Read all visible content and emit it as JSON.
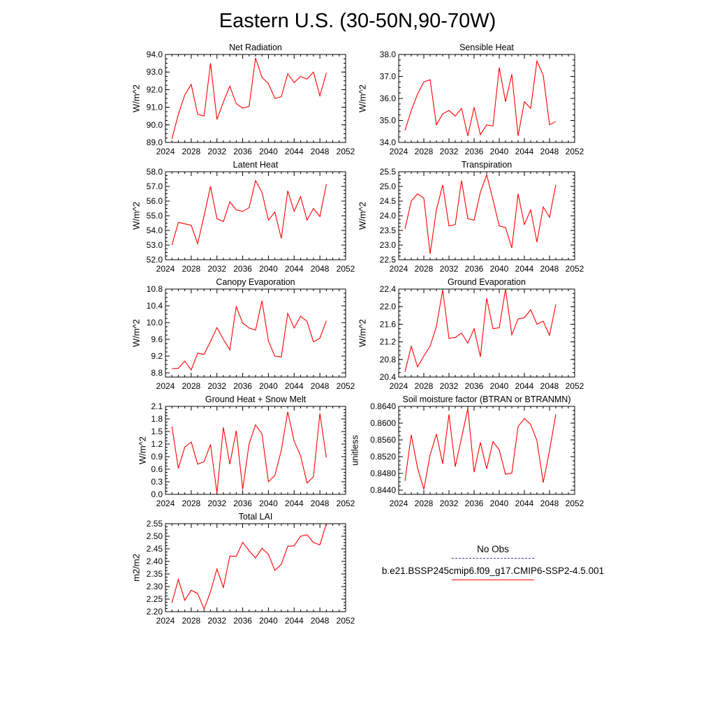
{
  "title": "Eastern U.S. (30-50N,90-70W)",
  "legend": {
    "items": [
      {
        "label": "No Obs",
        "color": "#3b3bb8",
        "style": "dashed"
      },
      {
        "label": "b.e21.BSSP245cmip6.f09_g17.CMIP6-SSP2-4.5.001",
        "color": "#ff0000",
        "style": "solid"
      }
    ]
  },
  "chart_data": [
    {
      "type": "line",
      "title": "Net Radiation",
      "ylabel": "W/m^2",
      "xlim": [
        2024,
        2052
      ],
      "ylim": [
        89.0,
        94.0
      ],
      "xticks": [
        2024,
        2028,
        2032,
        2036,
        2040,
        2044,
        2048,
        2052
      ],
      "yticks": [
        "89.0",
        "90.0",
        "91.0",
        "92.0",
        "93.0",
        "94.0"
      ],
      "series": [
        {
          "color": "#ff0000",
          "x": [
            2025,
            2026,
            2027,
            2028,
            2029,
            2030,
            2031,
            2032,
            2033,
            2034,
            2035,
            2036,
            2037,
            2038,
            2039,
            2040,
            2041,
            2042,
            2043,
            2044,
            2045,
            2046,
            2047,
            2048,
            2049
          ],
          "values": [
            89.2,
            90.6,
            91.7,
            92.3,
            90.6,
            90.5,
            93.5,
            90.3,
            91.3,
            92.2,
            91.2,
            90.95,
            91.05,
            93.8,
            92.7,
            92.35,
            91.5,
            91.6,
            92.9,
            92.4,
            92.75,
            92.6,
            93.0,
            91.65,
            92.95
          ]
        }
      ]
    },
    {
      "type": "line",
      "title": "Sensible Heat",
      "ylabel": "W/m^2",
      "xlim": [
        2024,
        2052
      ],
      "ylim": [
        34.0,
        38.0
      ],
      "xticks": [
        2024,
        2028,
        2032,
        2036,
        2040,
        2044,
        2048,
        2052
      ],
      "yticks": [
        "34.0",
        "35.0",
        "36.0",
        "37.0",
        "38.0"
      ],
      "series": [
        {
          "color": "#ff0000",
          "x": [
            2025,
            2026,
            2027,
            2028,
            2029,
            2030,
            2031,
            2032,
            2033,
            2034,
            2035,
            2036,
            2037,
            2038,
            2039,
            2040,
            2041,
            2042,
            2043,
            2044,
            2045,
            2046,
            2047,
            2048,
            2049
          ],
          "values": [
            34.55,
            35.45,
            36.2,
            36.75,
            36.85,
            34.8,
            35.3,
            35.45,
            35.2,
            35.55,
            34.3,
            35.6,
            34.35,
            34.8,
            34.75,
            37.4,
            35.85,
            37.1,
            34.3,
            35.85,
            35.55,
            37.7,
            37.05,
            34.8,
            34.95
          ]
        }
      ]
    },
    {
      "type": "line",
      "title": "Latent Heat",
      "ylabel": "W/m^2",
      "xlim": [
        2024,
        2052
      ],
      "ylim": [
        52.0,
        58.0
      ],
      "xticks": [
        2024,
        2028,
        2032,
        2036,
        2040,
        2044,
        2048,
        2052
      ],
      "yticks": [
        "52.0",
        "53.0",
        "54.0",
        "55.0",
        "56.0",
        "57.0",
        "58.0"
      ],
      "series": [
        {
          "color": "#ff0000",
          "x": [
            2025,
            2026,
            2027,
            2028,
            2029,
            2030,
            2031,
            2032,
            2033,
            2034,
            2035,
            2036,
            2037,
            2038,
            2039,
            2040,
            2041,
            2042,
            2043,
            2044,
            2045,
            2046,
            2047,
            2048,
            2049
          ],
          "values": [
            53.0,
            54.55,
            54.45,
            54.35,
            53.1,
            55.0,
            57.0,
            54.8,
            54.6,
            55.95,
            55.4,
            55.3,
            55.55,
            57.4,
            56.6,
            54.7,
            55.25,
            53.45,
            56.7,
            55.3,
            56.3,
            54.7,
            55.5,
            54.95,
            57.15
          ]
        }
      ]
    },
    {
      "type": "line",
      "title": "Transpiration",
      "ylabel": "W/m^2",
      "xlim": [
        2024,
        2052
      ],
      "ylim": [
        22.5,
        25.5
      ],
      "xticks": [
        2024,
        2028,
        2032,
        2036,
        2040,
        2044,
        2048,
        2052
      ],
      "yticks": [
        "22.5",
        "23.0",
        "23.5",
        "24.0",
        "24.5",
        "25.0",
        "25.5"
      ],
      "series": [
        {
          "color": "#ff0000",
          "x": [
            2025,
            2026,
            2027,
            2028,
            2029,
            2030,
            2031,
            2032,
            2033,
            2034,
            2035,
            2036,
            2037,
            2038,
            2039,
            2040,
            2041,
            2042,
            2043,
            2044,
            2045,
            2046,
            2047,
            2048,
            2049
          ],
          "values": [
            23.55,
            24.5,
            24.75,
            24.6,
            22.7,
            24.2,
            25.05,
            23.65,
            23.7,
            25.2,
            23.9,
            23.85,
            24.8,
            25.4,
            24.55,
            23.65,
            23.6,
            22.9,
            24.75,
            23.7,
            24.2,
            23.1,
            24.3,
            23.95,
            25.05
          ]
        }
      ]
    },
    {
      "type": "line",
      "title": "Canopy Evaporation",
      "ylabel": "W/m^2",
      "xlim": [
        2024,
        2052
      ],
      "ylim": [
        8.7,
        10.8
      ],
      "xticks": [
        2024,
        2028,
        2032,
        2036,
        2040,
        2044,
        2048,
        2052
      ],
      "yticks": [
        "8.8",
        "9.2",
        "9.6",
        "10.0",
        "10.4",
        "10.8"
      ],
      "series": [
        {
          "color": "#ff0000",
          "x": [
            2025,
            2026,
            2027,
            2028,
            2029,
            2030,
            2031,
            2032,
            2033,
            2034,
            2035,
            2036,
            2037,
            2038,
            2039,
            2040,
            2041,
            2042,
            2043,
            2044,
            2045,
            2046,
            2047,
            2048,
            2049
          ],
          "values": [
            8.9,
            8.91,
            9.08,
            8.87,
            9.27,
            9.24,
            9.55,
            9.88,
            9.6,
            9.35,
            10.38,
            9.99,
            9.87,
            9.82,
            10.52,
            9.56,
            9.2,
            9.18,
            10.22,
            9.87,
            10.15,
            10.03,
            9.54,
            9.63,
            10.04
          ]
        }
      ]
    },
    {
      "type": "line",
      "title": "Ground Evaporation",
      "ylabel": "W/m^2",
      "xlim": [
        2024,
        2052
      ],
      "ylim": [
        20.4,
        22.4
      ],
      "xticks": [
        2024,
        2028,
        2032,
        2036,
        2040,
        2044,
        2048,
        2052
      ],
      "yticks": [
        "20.4",
        "20.8",
        "21.2",
        "21.6",
        "22.0",
        "22.4"
      ],
      "series": [
        {
          "color": "#ff0000",
          "x": [
            2025,
            2026,
            2027,
            2028,
            2029,
            2030,
            2031,
            2032,
            2033,
            2034,
            2035,
            2036,
            2037,
            2038,
            2039,
            2040,
            2041,
            2042,
            2043,
            2044,
            2045,
            2046,
            2047,
            2048,
            2049
          ],
          "values": [
            20.52,
            21.1,
            20.63,
            20.88,
            21.1,
            21.55,
            22.38,
            21.28,
            21.3,
            21.4,
            21.17,
            21.5,
            20.86,
            22.19,
            21.5,
            21.52,
            22.4,
            21.36,
            21.72,
            21.75,
            21.93,
            21.6,
            21.67,
            21.35,
            22.05
          ]
        }
      ]
    },
    {
      "type": "line",
      "title": "Ground Heat + Snow Melt",
      "ylabel": "W/m^2",
      "xlim": [
        2024,
        2052
      ],
      "ylim": [
        0.0,
        2.1
      ],
      "xticks": [
        2024,
        2028,
        2032,
        2036,
        2040,
        2044,
        2048,
        2052
      ],
      "yticks": [
        "0.0",
        "0.3",
        "0.6",
        "0.9",
        "1.2",
        "1.5",
        "1.8",
        "2.1"
      ],
      "series": [
        {
          "color": "#ff0000",
          "x": [
            2025,
            2026,
            2027,
            2028,
            2029,
            2030,
            2031,
            2032,
            2033,
            2034,
            2035,
            2036,
            2037,
            2038,
            2039,
            2040,
            2041,
            2042,
            2043,
            2044,
            2045,
            2046,
            2047,
            2048,
            2049
          ],
          "values": [
            1.62,
            0.62,
            1.13,
            1.25,
            0.72,
            0.78,
            1.19,
            0.03,
            1.6,
            0.72,
            1.52,
            0.12,
            1.21,
            1.66,
            1.44,
            0.3,
            0.45,
            1.05,
            1.97,
            1.27,
            0.92,
            0.27,
            0.42,
            1.93,
            0.88
          ]
        }
      ]
    },
    {
      "type": "line",
      "title": "Soil moisture factor (BTRAN or BTRANMN)",
      "ylabel": "unitless",
      "xlim": [
        2024,
        2052
      ],
      "ylim": [
        0.843,
        0.864
      ],
      "xticks": [
        2024,
        2028,
        2032,
        2036,
        2040,
        2044,
        2048,
        2052
      ],
      "yticks": [
        "0.8440",
        "0.8480",
        "0.8520",
        "0.8560",
        "0.8600",
        "0.8640"
      ],
      "series": [
        {
          "color": "#ff0000",
          "x": [
            2025,
            2026,
            2027,
            2028,
            2029,
            2030,
            2031,
            2032,
            2033,
            2034,
            2035,
            2036,
            2037,
            2038,
            2039,
            2040,
            2041,
            2042,
            2043,
            2044,
            2045,
            2046,
            2047,
            2048,
            2049
          ],
          "values": [
            0.8462,
            0.8572,
            0.8493,
            0.8442,
            0.8524,
            0.8574,
            0.8503,
            0.8621,
            0.8496,
            0.8565,
            0.8635,
            0.8483,
            0.8554,
            0.8491,
            0.8556,
            0.8536,
            0.8478,
            0.8481,
            0.8592,
            0.8611,
            0.8597,
            0.8558,
            0.8458,
            0.8534,
            0.8621
          ]
        }
      ]
    },
    {
      "type": "line",
      "title": "Total LAI",
      "ylabel": "m2/m2",
      "xlim": [
        2024,
        2052
      ],
      "ylim": [
        2.2,
        2.55
      ],
      "xticks": [
        2024,
        2028,
        2032,
        2036,
        2040,
        2044,
        2048,
        2052
      ],
      "yticks": [
        "2.20",
        "2.25",
        "2.30",
        "2.35",
        "2.40",
        "2.45",
        "2.50",
        "2.55"
      ],
      "series": [
        {
          "color": "#ff0000",
          "x": [
            2025,
            2026,
            2027,
            2028,
            2029,
            2030,
            2031,
            2032,
            2033,
            2034,
            2035,
            2036,
            2037,
            2038,
            2039,
            2040,
            2041,
            2042,
            2043,
            2044,
            2045,
            2046,
            2047,
            2048,
            2049
          ],
          "values": [
            2.235,
            2.328,
            2.245,
            2.285,
            2.272,
            2.21,
            2.28,
            2.37,
            2.296,
            2.421,
            2.42,
            2.476,
            2.442,
            2.414,
            2.452,
            2.428,
            2.364,
            2.388,
            2.46,
            2.462,
            2.5,
            2.506,
            2.475,
            2.466,
            2.55
          ]
        }
      ]
    }
  ]
}
